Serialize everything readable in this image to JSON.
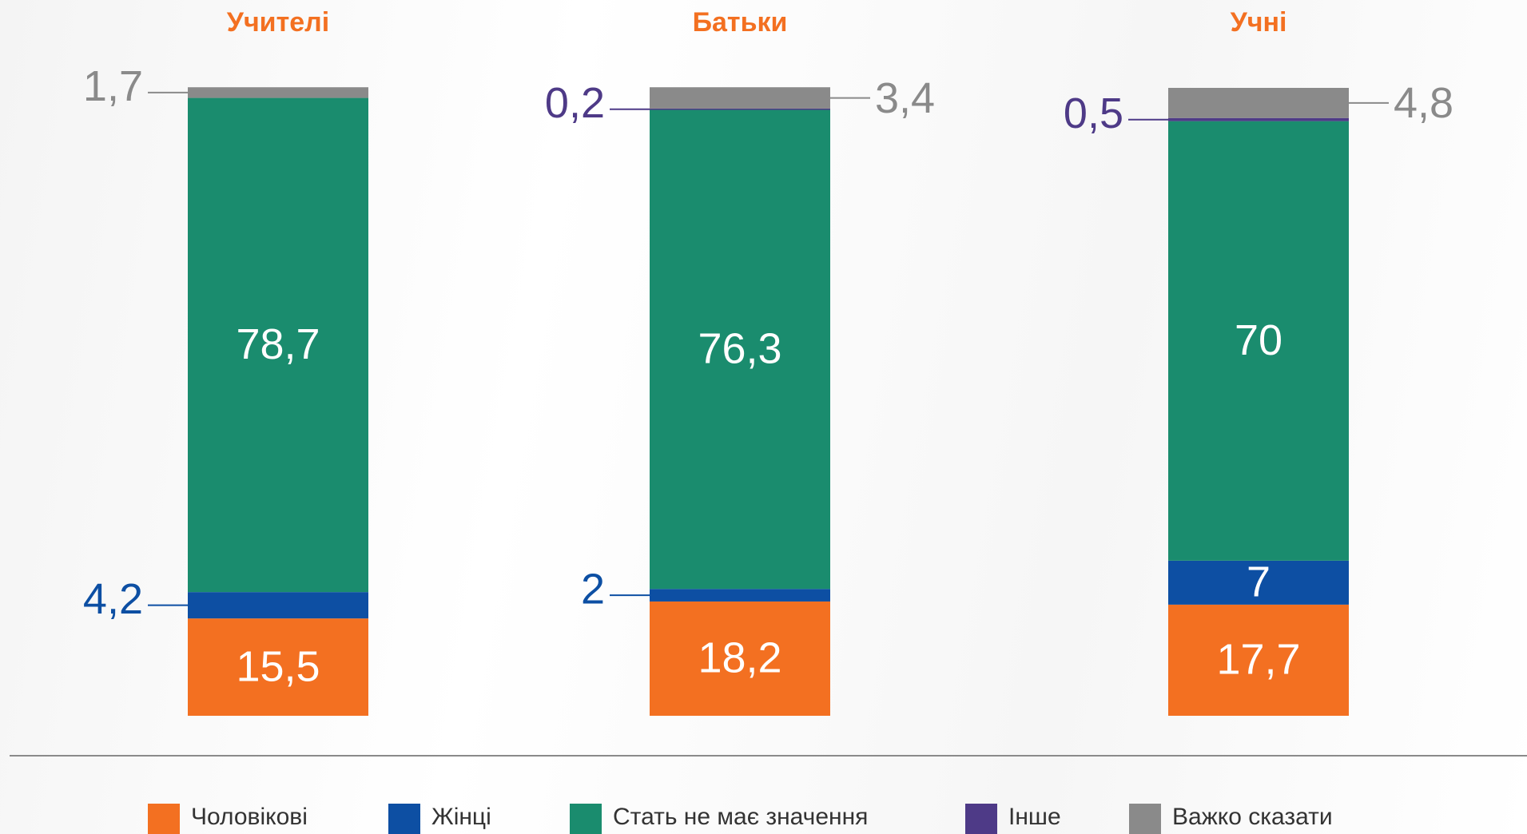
{
  "chart_data": {
    "type": "bar",
    "stacked": true,
    "categories": [
      "Учителі",
      "Батьки",
      "Учні"
    ],
    "ylim": [
      0,
      100
    ],
    "series": [
      {
        "name": "Чоловікові",
        "color": "#f37021",
        "values": [
          15.5,
          18.2,
          17.7
        ],
        "value_labels": [
          "15,5",
          "18,2",
          "17,7"
        ]
      },
      {
        "name": "Жінці",
        "color": "#0d4fa3",
        "values": [
          4.2,
          2,
          7
        ],
        "value_labels": [
          "4,2",
          "2",
          "7"
        ]
      },
      {
        "name": "Стать не має значення",
        "color": "#1a8c6e",
        "values": [
          78.7,
          76.3,
          70
        ],
        "value_labels": [
          "78,7",
          "76,3",
          "70"
        ]
      },
      {
        "name": "Інше",
        "color": "#4e3a87",
        "values": [
          null,
          0.2,
          0.5
        ],
        "value_labels": [
          null,
          "0,2",
          "0,5"
        ]
      },
      {
        "name": "Важко сказати",
        "color": "#8a8a8a",
        "values": [
          1.7,
          3.4,
          4.8
        ],
        "value_labels": [
          "1,7",
          "3,4",
          "4,8"
        ]
      }
    ]
  }
}
